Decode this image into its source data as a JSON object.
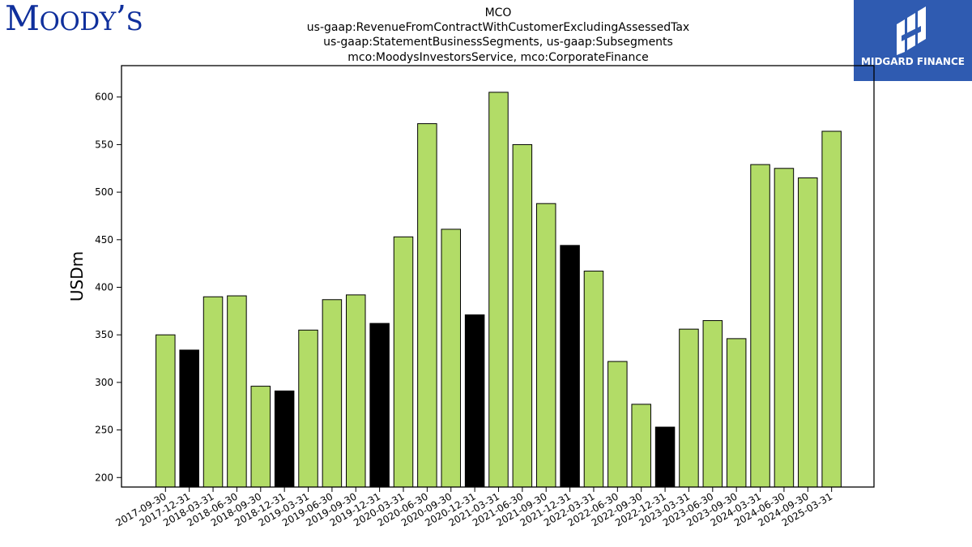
{
  "branding": {
    "left_logo": "Moody's",
    "right_logo": "MIDGARD FINANCE"
  },
  "chart_data": {
    "type": "bar",
    "title_lines": [
      "MCO",
      "us-gaap:RevenueFromContractWithCustomerExcludingAssessedTax",
      "us-gaap:StatementBusinessSegments, us-gaap:Subsegments",
      "mco:MoodysInvestorsService, mco:CorporateFinance"
    ],
    "ylabel": "USDm",
    "xlabel": "",
    "ylim": [
      190,
      633
    ],
    "yticks": [
      200,
      250,
      300,
      350,
      400,
      450,
      500,
      550,
      600
    ],
    "grid": false,
    "colors": {
      "quarter": "#b2dc67",
      "year_end": "#000000",
      "edge": "#000000"
    },
    "categories": [
      "2017-09-30",
      "2017-12-31",
      "2018-03-31",
      "2018-06-30",
      "2018-09-30",
      "2018-12-31",
      "2019-03-31",
      "2019-06-30",
      "2019-09-30",
      "2019-12-31",
      "2020-03-31",
      "2020-06-30",
      "2020-09-30",
      "2020-12-31",
      "2021-03-31",
      "2021-06-30",
      "2021-09-30",
      "2021-12-31",
      "2022-03-31",
      "2022-06-30",
      "2022-09-30",
      "2022-12-31",
      "2023-03-31",
      "2023-06-30",
      "2023-09-30",
      "2024-03-31",
      "2024-06-30",
      "2024-09-30",
      "2025-03-31"
    ],
    "values": [
      350,
      334,
      390,
      391,
      296,
      291,
      355,
      387,
      392,
      362,
      453,
      572,
      461,
      371,
      605,
      550,
      488,
      444,
      417,
      322,
      277,
      253,
      356,
      365,
      346,
      529,
      525,
      515,
      564
    ],
    "highlight": [
      false,
      true,
      false,
      false,
      false,
      true,
      false,
      false,
      false,
      true,
      false,
      false,
      false,
      true,
      false,
      false,
      false,
      true,
      false,
      false,
      false,
      true,
      false,
      false,
      false,
      false,
      false,
      false,
      false
    ]
  }
}
